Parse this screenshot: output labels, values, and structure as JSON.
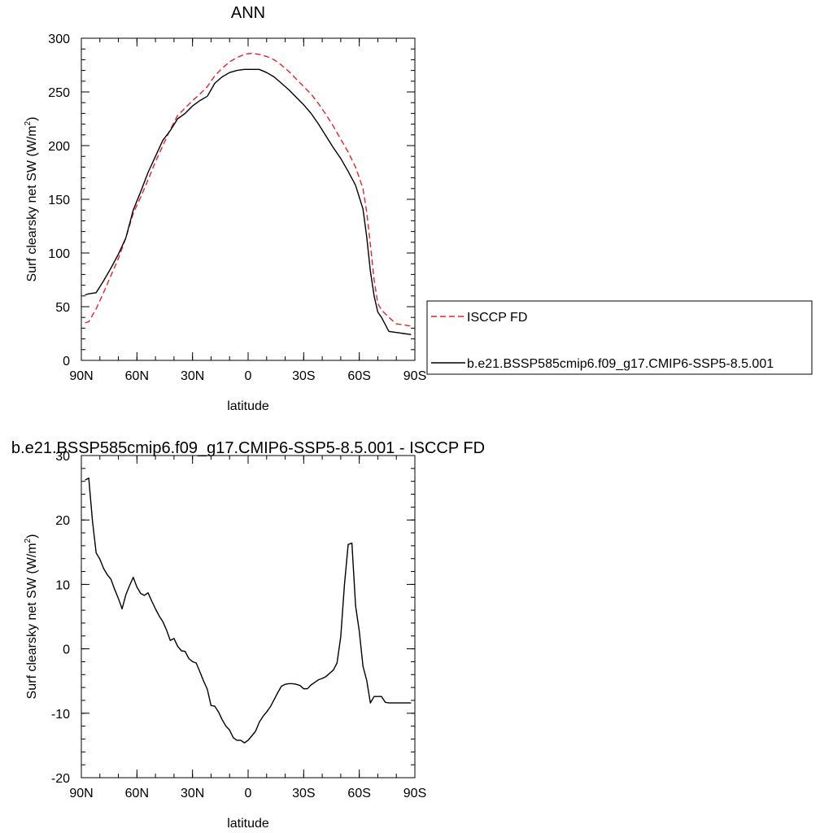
{
  "colors": {
    "model": "#000000",
    "obs": "#e8212b",
    "background": "#ffffff"
  },
  "chart_data": [
    {
      "type": "line",
      "title": "ANN",
      "xlabel": "latitude",
      "ylabel": "Surf clearsky net SW (W/m",
      "ylabel_sup": "2",
      "ylabel_close": ")",
      "xlim": [
        90,
        -90
      ],
      "ylim": [
        0,
        300
      ],
      "xticks": [
        90,
        60,
        30,
        0,
        -30,
        -60,
        -90
      ],
      "xtick_labels": [
        "90N",
        "60N",
        "30N",
        "0",
        "30S",
        "60S",
        "90S"
      ],
      "yticks": [
        0,
        50,
        100,
        150,
        200,
        250,
        300
      ],
      "ytick_labels": [
        "0",
        "50",
        "100",
        "150",
        "200",
        "250",
        "300"
      ],
      "legend_position": "right",
      "series": [
        {
          "name": "ISCCP FD",
          "style": "dashed",
          "color": "#e8212b",
          "x": [
            88,
            86,
            82,
            78,
            74,
            70,
            66,
            62,
            58,
            54,
            50,
            46,
            42,
            38,
            34,
            30,
            26,
            22,
            18,
            14,
            10,
            6,
            2,
            -2,
            -6,
            -10,
            -14,
            -18,
            -22,
            -26,
            -30,
            -34,
            -38,
            -42,
            -46,
            -50,
            -54,
            -58,
            -62,
            -64,
            -66,
            -68,
            -70,
            -72,
            -76,
            -80,
            -84,
            -88
          ],
          "y": [
            35,
            36,
            48,
            63,
            79,
            95,
            114,
            137,
            152,
            168,
            185,
            200,
            215,
            228,
            235,
            242,
            248,
            255,
            265,
            272,
            278,
            282,
            285,
            286,
            285,
            283,
            280,
            275,
            269,
            262,
            255,
            248,
            239,
            229,
            218,
            206,
            194,
            180,
            160,
            138,
            108,
            75,
            53,
            47,
            40,
            34,
            33,
            32
          ]
        },
        {
          "name": "b.e21.BSSP585cmip6.f09_g17.CMIP6-SSP5-8.5.001",
          "style": "solid",
          "color": "#000000",
          "x": [
            88,
            86,
            82,
            78,
            74,
            70,
            66,
            62,
            58,
            54,
            50,
            46,
            42,
            38,
            34,
            30,
            26,
            22,
            18,
            14,
            10,
            6,
            2,
            -2,
            -6,
            -10,
            -14,
            -18,
            -22,
            -26,
            -30,
            -34,
            -38,
            -42,
            -46,
            -50,
            -54,
            -58,
            -62,
            -64,
            -66,
            -68,
            -70,
            -72,
            -76,
            -80,
            -84,
            -88
          ],
          "y": [
            61,
            62,
            63,
            74,
            86,
            99,
            114,
            140,
            157,
            175,
            190,
            205,
            214,
            225,
            230,
            237,
            242,
            246,
            258,
            264,
            268,
            270,
            271,
            271,
            271,
            268,
            264,
            258,
            252,
            245,
            238,
            230,
            220,
            209,
            198,
            188,
            176,
            163,
            141,
            115,
            83,
            60,
            45,
            40,
            27,
            26,
            25,
            24
          ]
        }
      ]
    },
    {
      "type": "line",
      "title": "b.e21.BSSP585cmip6.f09_g17.CMIP6-SSP5-8.5.001 - ISCCP FD",
      "xlabel": "latitude",
      "ylabel": "Surf clearsky net SW (W/m",
      "ylabel_sup": "2",
      "ylabel_close": ")",
      "xlim": [
        90,
        -90
      ],
      "ylim": [
        -20,
        30
      ],
      "xticks": [
        90,
        60,
        30,
        0,
        -30,
        -60,
        -90
      ],
      "xtick_labels": [
        "90N",
        "60N",
        "30N",
        "0",
        "30S",
        "60S",
        "90S"
      ],
      "yticks": [
        -20,
        -10,
        0,
        10,
        20,
        30
      ],
      "ytick_labels": [
        "-20",
        "-10",
        "0",
        "10",
        "20",
        "30"
      ],
      "series": [
        {
          "style": "solid",
          "color": "#000000",
          "x": [
            88,
            86,
            84,
            82,
            80,
            78,
            76,
            74,
            72,
            70,
            68,
            66,
            64,
            62,
            60,
            58,
            56,
            54,
            52,
            50,
            48,
            46,
            44,
            42,
            40,
            38,
            36,
            34,
            32,
            30,
            28,
            26,
            24,
            22,
            20,
            18,
            16,
            14,
            12,
            10,
            8,
            6,
            4,
            2,
            0,
            -2,
            -4,
            -6,
            -8,
            -10,
            -12,
            -14,
            -16,
            -18,
            -20,
            -22,
            -24,
            -26,
            -28,
            -30,
            -32,
            -34,
            -36,
            -38,
            -40,
            -42,
            -44,
            -46,
            -48,
            -50,
            -52,
            -54,
            -56,
            -58,
            -60,
            -62,
            -64,
            -66,
            -68,
            -70,
            -72,
            -74,
            -76,
            -78,
            -80,
            -82,
            -84,
            -86,
            -88
          ],
          "y": [
            26.2,
            26.5,
            19.8,
            14.9,
            13.9,
            12.5,
            11.5,
            10.8,
            9.2,
            7.8,
            6.2,
            8.4,
            9.8,
            11.1,
            9.6,
            8.6,
            8.3,
            8.7,
            7.4,
            6.2,
            5.1,
            4.2,
            2.9,
            1.3,
            1.6,
            0.4,
            -0.3,
            -0.4,
            -1.5,
            -2.0,
            -2.2,
            -3.6,
            -5.0,
            -6.3,
            -8.8,
            -8.9,
            -9.8,
            -11.0,
            -12.0,
            -12.6,
            -13.8,
            -14.2,
            -14.2,
            -14.6,
            -14.2,
            -13.5,
            -12.8,
            -11.4,
            -10.5,
            -9.8,
            -9.0,
            -7.9,
            -6.8,
            -5.8,
            -5.5,
            -5.4,
            -5.4,
            -5.5,
            -5.7,
            -6.2,
            -6.2,
            -5.6,
            -5.2,
            -4.8,
            -4.6,
            -4.3,
            -3.8,
            -3.3,
            -2.2,
            1.9,
            9.9,
            16.2,
            16.4,
            6.7,
            2.7,
            -2.7,
            -4.9,
            -8.4,
            -7.4,
            -7.4,
            -7.4,
            -8.3,
            -8.4,
            -8.4,
            -8.4,
            -8.4,
            -8.4,
            -8.4,
            -8.4
          ]
        }
      ]
    }
  ]
}
